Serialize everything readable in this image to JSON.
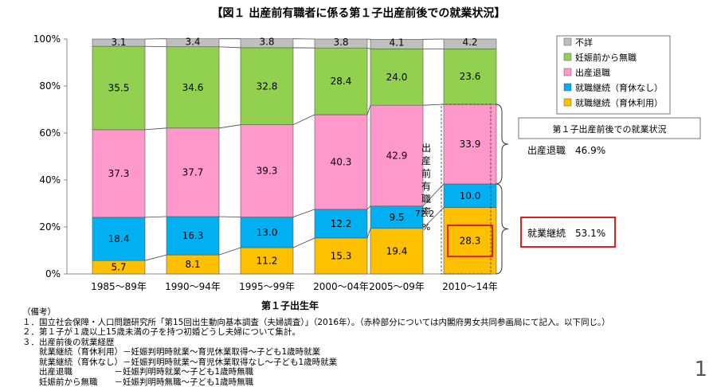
{
  "chart_data": {
    "type": "bar",
    "stacked": true,
    "title": "【図１ 出産前有職者に係る第１子出産前後での就業状況】",
    "xlabel": "第１子出生年",
    "ylim": [
      0,
      100
    ],
    "yticks": [
      "0%",
      "20%",
      "40%",
      "60%",
      "80%",
      "100%"
    ],
    "categories": [
      "1985～89年",
      "1990～94年",
      "1995～99年",
      "2000～04年",
      "2005～09年",
      "2010～14年"
    ],
    "series": [
      {
        "name": "就職継続（育休利用）",
        "color": "#ffc000",
        "values": [
          5.7,
          8.1,
          11.2,
          15.3,
          19.4,
          28.3
        ]
      },
      {
        "name": "就職継続（育休なし）",
        "color": "#00b0f0",
        "values": [
          18.4,
          16.3,
          13.0,
          12.2,
          9.5,
          10.0
        ]
      },
      {
        "name": "出産退職",
        "color": "#ff99cc",
        "values": [
          37.3,
          37.7,
          39.3,
          40.3,
          42.9,
          33.9
        ]
      },
      {
        "name": "妊娠前から無職",
        "color": "#92d050",
        "values": [
          35.5,
          34.6,
          32.8,
          28.4,
          24.0,
          23.6
        ]
      },
      {
        "name": "不詳",
        "color": "#bfbfbf",
        "values": [
          3.1,
          3.4,
          3.8,
          3.8,
          4.1,
          4.2
        ]
      }
    ],
    "legend_order": [
      4,
      3,
      2,
      1,
      0
    ],
    "legend_position": "top-right",
    "annotations": {
      "box_title": "第１子出産前後での就業状況",
      "retire_label": "出産退職　46.9%",
      "continue_label": "就業継続　53.1%",
      "employment_rate_label": "出産前有職率",
      "employment_rate_value": "72.2",
      "employment_rate_unit": "%"
    }
  },
  "notes": {
    "header": "（備考）",
    "lines": [
      "１．国立社会保障・人口問題研究所「第15回出生動向基本調査（夫婦調査）」（2016年）。（赤枠部分については内閣府男女共同参画局にて記入。以下同じ。）",
      "２．第１子が１歳以上15歳未満の子を持つ初婚どうし夫婦について集計。",
      "３．出産前後の就業経歴",
      "　　就業継続（育休利用）－妊娠判明時就業～育児休業取得～子ども1歳時就業",
      "　　就業継続（育休なし）－妊娠判明時就業～育児休業取得なし～子ども1歳時就業",
      "　　出産退職　　　　　－妊娠判明時就業～子ども1歳時無職",
      "　　妊娠前から無職　　－妊娠判明時無職～子ども1歳時無職"
    ]
  },
  "page_number": "1"
}
